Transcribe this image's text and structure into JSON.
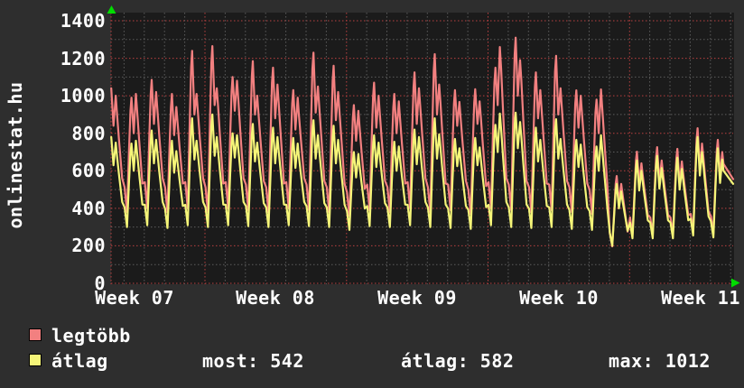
{
  "watermark": "onlinestat.hu",
  "colors": {
    "background": "#2e2e2e",
    "plot_background": "#1b1b1b",
    "grid_minor": "#5c5c5c",
    "grid_major": "#b94040",
    "axis_arrow": "#00dd00",
    "text": "#ffffff",
    "series_legtobb": "#f28080",
    "series_atlag": "#f5f578"
  },
  "legend": [
    {
      "label": "legtöbb",
      "color": "#f28080",
      "icon": "legend-swatch"
    },
    {
      "label": "átlag",
      "color": "#f5f578",
      "icon": "legend-swatch"
    }
  ],
  "stats": [
    {
      "label": "most",
      "value": 542
    },
    {
      "label": "átlag",
      "value": 582
    },
    {
      "label": "max",
      "value": 1012
    }
  ],
  "chart_data": {
    "type": "line",
    "title": "",
    "xlabel": "",
    "ylabel": "",
    "ylim": [
      0,
      1400
    ],
    "y_ticks": [
      0,
      200,
      400,
      600,
      800,
      1000,
      1200,
      1400
    ],
    "y_minor_step": 100,
    "x_tick_labels": [
      "Week 07",
      "Week 08",
      "Week 09",
      "Week 10",
      "Week 11"
    ],
    "x_minor_unit": "day",
    "days_shown": 31,
    "grid": true,
    "legend_position": "bottom-left",
    "current": 542,
    "average": 582,
    "max": 1012,
    "daily_format": [
      "night_min",
      "morning_peak",
      "midday_dip",
      "evening_peak"
    ],
    "series": [
      {
        "name": "legtöbb",
        "color": "#f28080",
        "end_value": 555,
        "daily": [
          [
            400,
            1040,
            840,
            1000
          ],
          [
            380,
            990,
            800,
            1010
          ],
          [
            400,
            1085,
            850,
            1020
          ],
          [
            380,
            1010,
            790,
            940
          ],
          [
            400,
            1240,
            900,
            1010
          ],
          [
            380,
            1265,
            950,
            1040
          ],
          [
            400,
            1100,
            920,
            1080
          ],
          [
            390,
            1185,
            900,
            1000
          ],
          [
            380,
            1150,
            880,
            1060
          ],
          [
            400,
            1030,
            820,
            990
          ],
          [
            390,
            1230,
            910,
            1050
          ],
          [
            380,
            1160,
            870,
            1020
          ],
          [
            360,
            950,
            760,
            920
          ],
          [
            390,
            1070,
            830,
            1000
          ],
          [
            380,
            1010,
            800,
            970
          ],
          [
            400,
            1125,
            850,
            1040
          ],
          [
            380,
            1222,
            900,
            1060
          ],
          [
            390,
            1030,
            840,
            967
          ],
          [
            370,
            1035,
            850,
            970
          ],
          [
            400,
            1150,
            950,
            1260
          ],
          [
            390,
            1310,
            1000,
            1190
          ],
          [
            380,
            1125,
            880,
            1030
          ],
          [
            390,
            1213,
            900,
            1040
          ],
          [
            380,
            1029,
            830,
            1000
          ],
          [
            370,
            980,
            800,
            1034
          ],
          [
            197,
            572,
            430,
            530
          ],
          [
            260,
            702,
            530,
            640
          ],
          [
            260,
            726,
            540,
            655
          ],
          [
            260,
            717,
            530,
            650
          ],
          [
            274,
            827,
            610,
            745
          ],
          [
            265,
            765,
            570,
            700
          ]
        ]
      },
      {
        "name": "átlag",
        "color": "#f5f578",
        "end_value": 530,
        "daily": [
          [
            310,
            780,
            630,
            750
          ],
          [
            300,
            745,
            600,
            760
          ],
          [
            310,
            815,
            640,
            765
          ],
          [
            295,
            760,
            590,
            705
          ],
          [
            310,
            880,
            660,
            760
          ],
          [
            300,
            900,
            680,
            780
          ],
          [
            310,
            800,
            670,
            790
          ],
          [
            305,
            850,
            650,
            750
          ],
          [
            300,
            830,
            640,
            780
          ],
          [
            310,
            775,
            615,
            745
          ],
          [
            305,
            870,
            665,
            790
          ],
          [
            300,
            840,
            640,
            765
          ],
          [
            285,
            700,
            565,
            690
          ],
          [
            305,
            790,
            620,
            750
          ],
          [
            300,
            755,
            600,
            730
          ],
          [
            310,
            820,
            635,
            780
          ],
          [
            300,
            880,
            665,
            795
          ],
          [
            295,
            770,
            625,
            720
          ],
          [
            290,
            775,
            630,
            725
          ],
          [
            310,
            845,
            700,
            905
          ],
          [
            300,
            910,
            720,
            860
          ],
          [
            295,
            830,
            650,
            765
          ],
          [
            300,
            875,
            665,
            770
          ],
          [
            290,
            765,
            620,
            740
          ],
          [
            285,
            730,
            600,
            790
          ],
          [
            200,
            530,
            400,
            490
          ],
          [
            240,
            655,
            495,
            600
          ],
          [
            240,
            680,
            505,
            615
          ],
          [
            240,
            670,
            500,
            610
          ],
          [
            255,
            780,
            575,
            700
          ],
          [
            245,
            720,
            535,
            660
          ]
        ]
      }
    ]
  }
}
